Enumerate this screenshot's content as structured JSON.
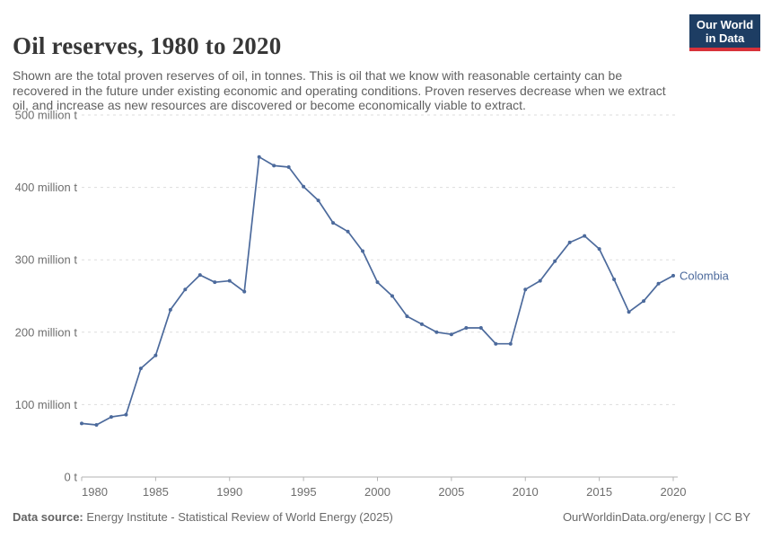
{
  "header": {
    "title": "Oil reserves, 1980 to 2020",
    "subtitle": "Shown are the total proven reserves of oil, in tonnes. This is oil that we know with reasonable certainty can be recovered in the future under existing economic and operating conditions. Proven reserves decrease when we extract oil, and increase as new resources are discovered or become economically viable to extract.",
    "logo": {
      "line1": "Our World",
      "line2": "in Data",
      "bg_color": "#1d3d63",
      "bar_color": "#d8323a"
    }
  },
  "chart_data": {
    "type": "line",
    "title": "Oil reserves, 1980 to 2020",
    "unit": "million t",
    "x": [
      1980,
      1981,
      1982,
      1983,
      1984,
      1985,
      1986,
      1987,
      1988,
      1989,
      1990,
      1991,
      1992,
      1993,
      1994,
      1995,
      1996,
      1997,
      1998,
      1999,
      2000,
      2001,
      2002,
      2003,
      2004,
      2005,
      2006,
      2007,
      2008,
      2009,
      2010,
      2011,
      2012,
      2013,
      2014,
      2015,
      2016,
      2017,
      2018,
      2019,
      2020
    ],
    "series": [
      {
        "name": "Colombia",
        "color": "#4C6A9C",
        "values": [
          74,
          72,
          83,
          86,
          150,
          168,
          231,
          259,
          279,
          269,
          271,
          256,
          442,
          430,
          428,
          401,
          382,
          351,
          339,
          312,
          269,
          250,
          222,
          211,
          200,
          197,
          206,
          206,
          184,
          184,
          259,
          271,
          298,
          324,
          333,
          315,
          273,
          228,
          243,
          267,
          278
        ]
      }
    ],
    "ylim": [
      0,
      500
    ],
    "yticks": [
      0,
      100,
      200,
      300,
      400,
      500
    ],
    "ytick_labels": [
      "0 t",
      "100 million t",
      "200 million t",
      "300 million t",
      "400 million t",
      "500 million t"
    ],
    "xticks": [
      1980,
      1985,
      1990,
      1995,
      2000,
      2005,
      2010,
      2015,
      2020
    ],
    "grid": "horizontal-dashed",
    "legend_position": "end-of-line-label",
    "colors": {
      "grid": "#dddddd",
      "axis": "#b3b3b3",
      "tick_label": "#6e6e6e"
    }
  },
  "footer": {
    "source_label": "Data source:",
    "source_text": " Energy Institute - Statistical Review of World Energy (2025)",
    "right_text": "OurWorldinData.org/energy | CC BY"
  }
}
